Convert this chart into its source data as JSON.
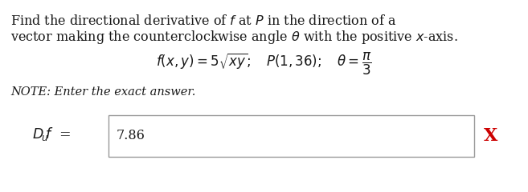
{
  "line1": "Find the directional derivative of $f$ at $P$ in the direction of a",
  "line2": "vector making the counterclockwise angle $\\theta$ with the positive $x$-axis.",
  "formula": "$f(x, y) = 5\\sqrt{xy};\\quad P(1, 36);\\quad \\theta = \\dfrac{\\pi}{3}$",
  "note": "NOTE: Enter the exact answer.",
  "bg_color": "#ffffff",
  "text_color": "#1a1a1a",
  "red_color": "#cc0000",
  "box_edge_color": "#999999",
  "font_size_body": 11.5,
  "font_size_formula": 12.0,
  "font_size_note": 10.5,
  "font_size_label": 12.5,
  "font_size_answer": 11.5,
  "font_size_x": 16,
  "answer": "7.86",
  "x_mark": "X"
}
